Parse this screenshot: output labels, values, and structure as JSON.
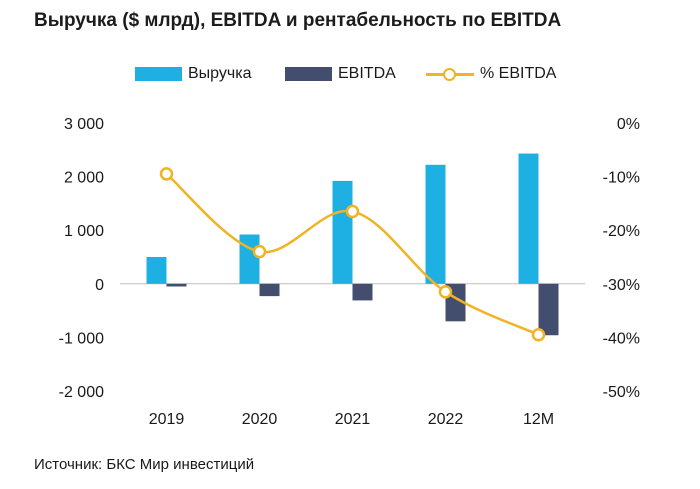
{
  "chart_data": {
    "type": "bar+line",
    "title": "Выручка ($ млрд), EBITDA и рентабельность по EBITDA",
    "categories": [
      "2019",
      "2020",
      "2021",
      "2022",
      "12М"
    ],
    "series": [
      {
        "name": "Выручка",
        "type": "bar",
        "axis": "left",
        "color": "#1fb0e3",
        "values": [
          500,
          920,
          1920,
          2220,
          2430
        ]
      },
      {
        "name": "EBITDA",
        "type": "bar",
        "axis": "left",
        "color": "#434e6e",
        "values": [
          -50,
          -230,
          -310,
          -700,
          -960
        ]
      },
      {
        "name": "% EBITDA",
        "type": "line",
        "axis": "right",
        "color": "#f0b323",
        "values": [
          -9.5,
          -24,
          -16.5,
          -31.5,
          -39.5
        ]
      }
    ],
    "y_left": {
      "min": -2000,
      "max": 3000,
      "ticks": [
        3000,
        2000,
        1000,
        0,
        -1000,
        -2000
      ],
      "tick_labels": [
        "3 000",
        "2 000",
        "1 000",
        "0",
        "-1 000",
        "-2 000"
      ]
    },
    "y_right": {
      "min": -50,
      "max": 0,
      "ticks": [
        0,
        -10,
        -20,
        -30,
        -40,
        -50
      ],
      "tick_labels": [
        "0%",
        "-10%",
        "-20%",
        "-30%",
        "-40%",
        "-50%"
      ]
    },
    "grid": false,
    "legend_position": "top-center",
    "source": "Источник: БКС Мир инвестиций"
  }
}
